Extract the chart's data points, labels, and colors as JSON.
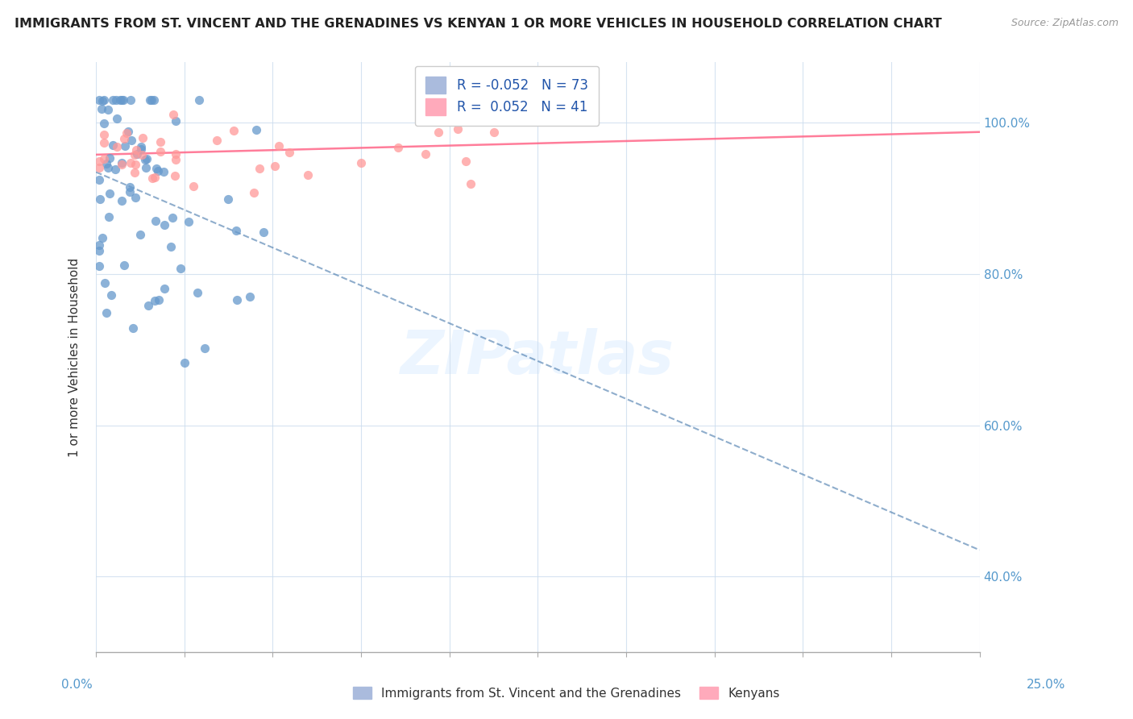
{
  "title": "IMMIGRANTS FROM ST. VINCENT AND THE GRENADINES VS KENYAN 1 OR MORE VEHICLES IN HOUSEHOLD CORRELATION CHART",
  "source": "Source: ZipAtlas.com",
  "ylabel": "1 or more Vehicles in Household",
  "xlim": [
    0.0,
    0.25
  ],
  "ylim": [
    0.3,
    1.08
  ],
  "blue_color": "#6699CC",
  "pink_color": "#FF9999",
  "blue_line_color": "#4477AA",
  "pink_line_color": "#FF6688",
  "legend_entry1": "R = -0.052   N = 73",
  "legend_entry2": "R =  0.052   N = 41",
  "legend_label1": "Immigrants from St. Vincent and the Grenadines",
  "legend_label2": "Kenyans"
}
